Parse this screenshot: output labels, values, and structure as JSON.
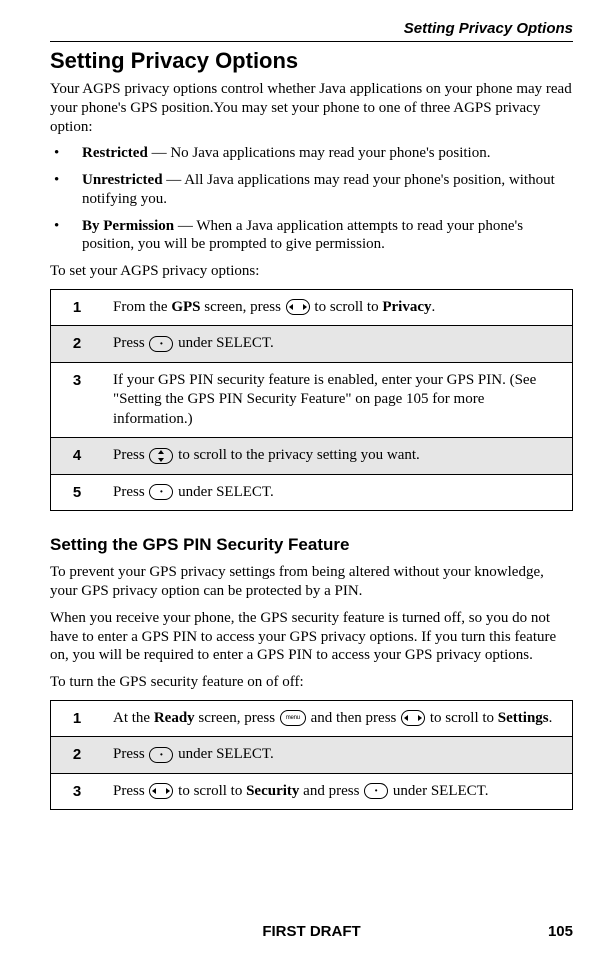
{
  "header": {
    "running_title": "Setting Privacy Options"
  },
  "section1": {
    "heading": "Setting Privacy Options",
    "intro": "Your AGPS privacy options control whether Java applications on your phone may read your phone's GPS position.You may set your phone to one of three AGPS privacy option:",
    "bullets": [
      {
        "bold": "Restricted",
        "rest": " — No Java applications may read your phone's position."
      },
      {
        "bold": "Unrestricted",
        "rest": " — All Java applications may read your phone's position, without notifying you."
      },
      {
        "bold": "By Permission",
        "rest": " — When a Java application attempts to read your phone's position, you will be prompted to give permission."
      }
    ],
    "lead_in": "To set your AGPS privacy options:",
    "steps": [
      {
        "n": "1",
        "pre": "From the ",
        "b1": "GPS",
        "mid1": " screen, press ",
        "icon1": "nav-h",
        "mid2": " to scroll to ",
        "b2": "Privacy",
        "post": "."
      },
      {
        "n": "2",
        "pre": "Press ",
        "icon1": "dot",
        "mid1": " under SELECT."
      },
      {
        "n": "3",
        "pre": "If your GPS PIN security feature is enabled, enter your GPS PIN. (See \"Setting the GPS PIN Security Feature\" on page 105 for more information.)"
      },
      {
        "n": "4",
        "pre": "Press ",
        "icon1": "nav-v",
        "mid1": " to scroll to the privacy setting you want."
      },
      {
        "n": "5",
        "pre": "Press ",
        "icon1": "dot",
        "mid1": " under SELECT."
      }
    ]
  },
  "section2": {
    "heading": "Setting the GPS PIN Security Feature",
    "para1": "To prevent your GPS privacy settings from being altered without your knowledge, your GPS privacy option can be protected by a PIN.",
    "para2": "When you receive your phone, the GPS security feature is turned off, so you do not have to enter a GPS PIN to access your GPS privacy options. If you turn this feature on, you will be required to enter a GPS PIN to access your GPS privacy options.",
    "lead_in": "To turn the GPS security feature on of off:",
    "steps": [
      {
        "n": "1",
        "pre": "At the ",
        "b1": "Ready",
        "mid1": " screen, press ",
        "icon1": "menu",
        "mid2": " and then press ",
        "icon2": "nav-h",
        "mid3": " to scroll to ",
        "b2": "Settings",
        "post": "."
      },
      {
        "n": "2",
        "pre": "Press ",
        "icon1": "dot",
        "mid1": " under SELECT."
      },
      {
        "n": "3",
        "pre": "Press ",
        "icon1": "nav-h",
        "mid1": " to scroll to ",
        "b1": "Security",
        "mid2": " and press ",
        "icon2": "dot",
        "mid3": " under SELECT."
      }
    ]
  },
  "footer": {
    "center": "FIRST DRAFT",
    "page": "105"
  },
  "icons": {
    "menu_label": "menu"
  },
  "colors": {
    "shade": "#e6e6e6",
    "text": "#000000",
    "bg": "#ffffff"
  }
}
